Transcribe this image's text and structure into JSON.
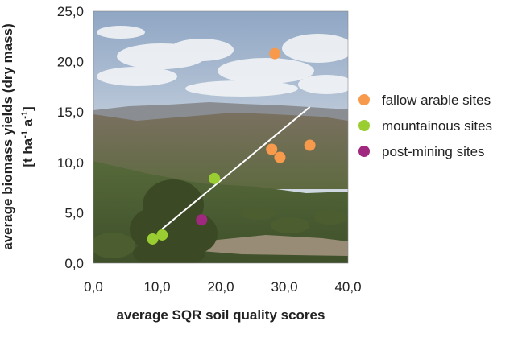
{
  "chart_data": {
    "type": "scatter",
    "title": "",
    "xlabel": "average SQR soil quality scores",
    "ylabel_line1": "average biomass yields (dry mass)",
    "ylabel_line2": "[t ha",
    "ylabel_sup1": "-1",
    "ylabel_mid": " a",
    "ylabel_sup2": "-1",
    "ylabel_end": "]",
    "xlim": [
      0,
      40
    ],
    "ylim": [
      0,
      25
    ],
    "x_ticks": [
      0,
      10,
      20,
      30,
      40
    ],
    "y_ticks": [
      0,
      5,
      10,
      15,
      20,
      25
    ],
    "x_tick_labels": [
      "0,0",
      "10,0",
      "20,0",
      "30,0",
      "40,0"
    ],
    "y_tick_labels": [
      "0,0",
      "5,0",
      "10,0",
      "15,0",
      "20,0",
      "25,0"
    ],
    "grid": false,
    "legend_position": "right",
    "background": "landscape photograph (sky, clouds, hills, shrubs)",
    "series": [
      {
        "name": "fallow arable sites",
        "color": "#F79A4C",
        "points": [
          {
            "x": 28.5,
            "y": 20.8
          },
          {
            "x": 28.0,
            "y": 11.3
          },
          {
            "x": 29.3,
            "y": 10.5
          },
          {
            "x": 34.0,
            "y": 11.7
          }
        ]
      },
      {
        "name": "mountainous sites",
        "color": "#9ACD32",
        "points": [
          {
            "x": 9.3,
            "y": 2.4
          },
          {
            "x": 10.8,
            "y": 2.8
          },
          {
            "x": 19.0,
            "y": 8.4
          }
        ]
      },
      {
        "name": "post-mining sites",
        "color": "#A0287F",
        "points": [
          {
            "x": 17.0,
            "y": 4.3
          }
        ]
      }
    ],
    "trendline": {
      "color": "#ffffff",
      "x_start": 10.8,
      "y_start": 3.4,
      "x_end": 34.0,
      "y_end": 15.5
    }
  }
}
